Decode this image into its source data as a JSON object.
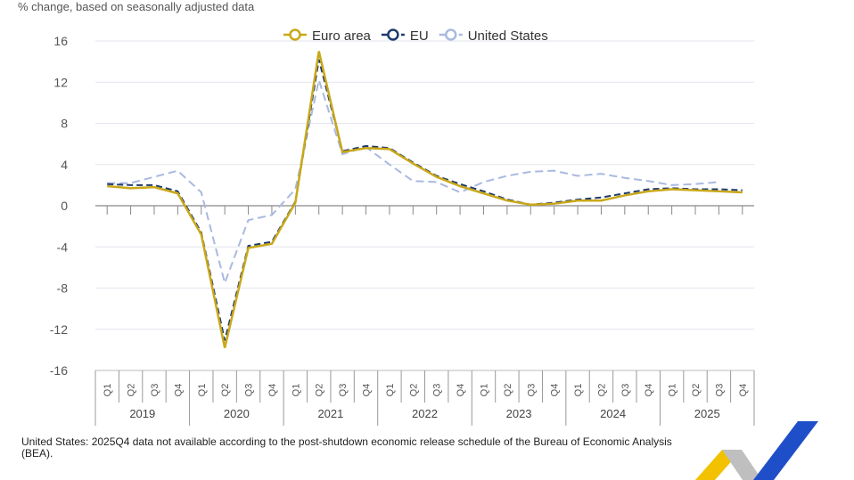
{
  "subtitle": "% change, based on seasonally adjusted data",
  "note": "United States: 2025Q4 data not available according to the post-shutdown economic release schedule of the Bureau of Economic Analysis (BEA).",
  "chart_data": {
    "type": "line",
    "ylim": [
      -16,
      16
    ],
    "yticks": [
      16,
      12,
      8,
      4,
      0,
      -4,
      -8,
      -12,
      -16
    ],
    "years": [
      "2019",
      "2020",
      "2021",
      "2022",
      "2023",
      "2024",
      "2025"
    ],
    "quarters": [
      "Q1",
      "Q2",
      "Q3",
      "Q4"
    ],
    "legend_position": "top-center",
    "grid": true,
    "series": [
      {
        "name": "Euro area",
        "color": "#c9a818",
        "dash": "",
        "values": [
          1.9,
          1.7,
          1.8,
          1.2,
          -2.8,
          -13.8,
          -4.1,
          -3.7,
          0.3,
          15.0,
          5.2,
          5.6,
          5.5,
          4.1,
          2.8,
          1.9,
          1.2,
          0.5,
          0.1,
          0.2,
          0.5,
          0.5,
          1.0,
          1.4,
          1.6,
          1.5,
          1.4,
          1.3
        ]
      },
      {
        "name": "EU",
        "color": "#1f3a6e",
        "dash": "7,4",
        "values": [
          2.1,
          2.0,
          2.0,
          1.4,
          -2.6,
          -13.1,
          -3.9,
          -3.5,
          0.4,
          14.2,
          5.3,
          5.8,
          5.6,
          4.2,
          2.9,
          2.1,
          1.4,
          0.6,
          0.1,
          0.3,
          0.6,
          0.8,
          1.2,
          1.6,
          1.7,
          1.6,
          1.6,
          1.5
        ]
      },
      {
        "name": "United States",
        "color": "#a9b9e0",
        "dash": "9,5",
        "values": [
          2.2,
          2.2,
          2.8,
          3.4,
          1.3,
          -7.5,
          -1.4,
          -0.9,
          1.6,
          12.2,
          5.0,
          5.7,
          4.0,
          2.4,
          2.3,
          1.3,
          2.3,
          2.9,
          3.3,
          3.4,
          2.9,
          3.1,
          2.7,
          2.4,
          2.0,
          2.1,
          2.3,
          null
        ]
      }
    ]
  }
}
